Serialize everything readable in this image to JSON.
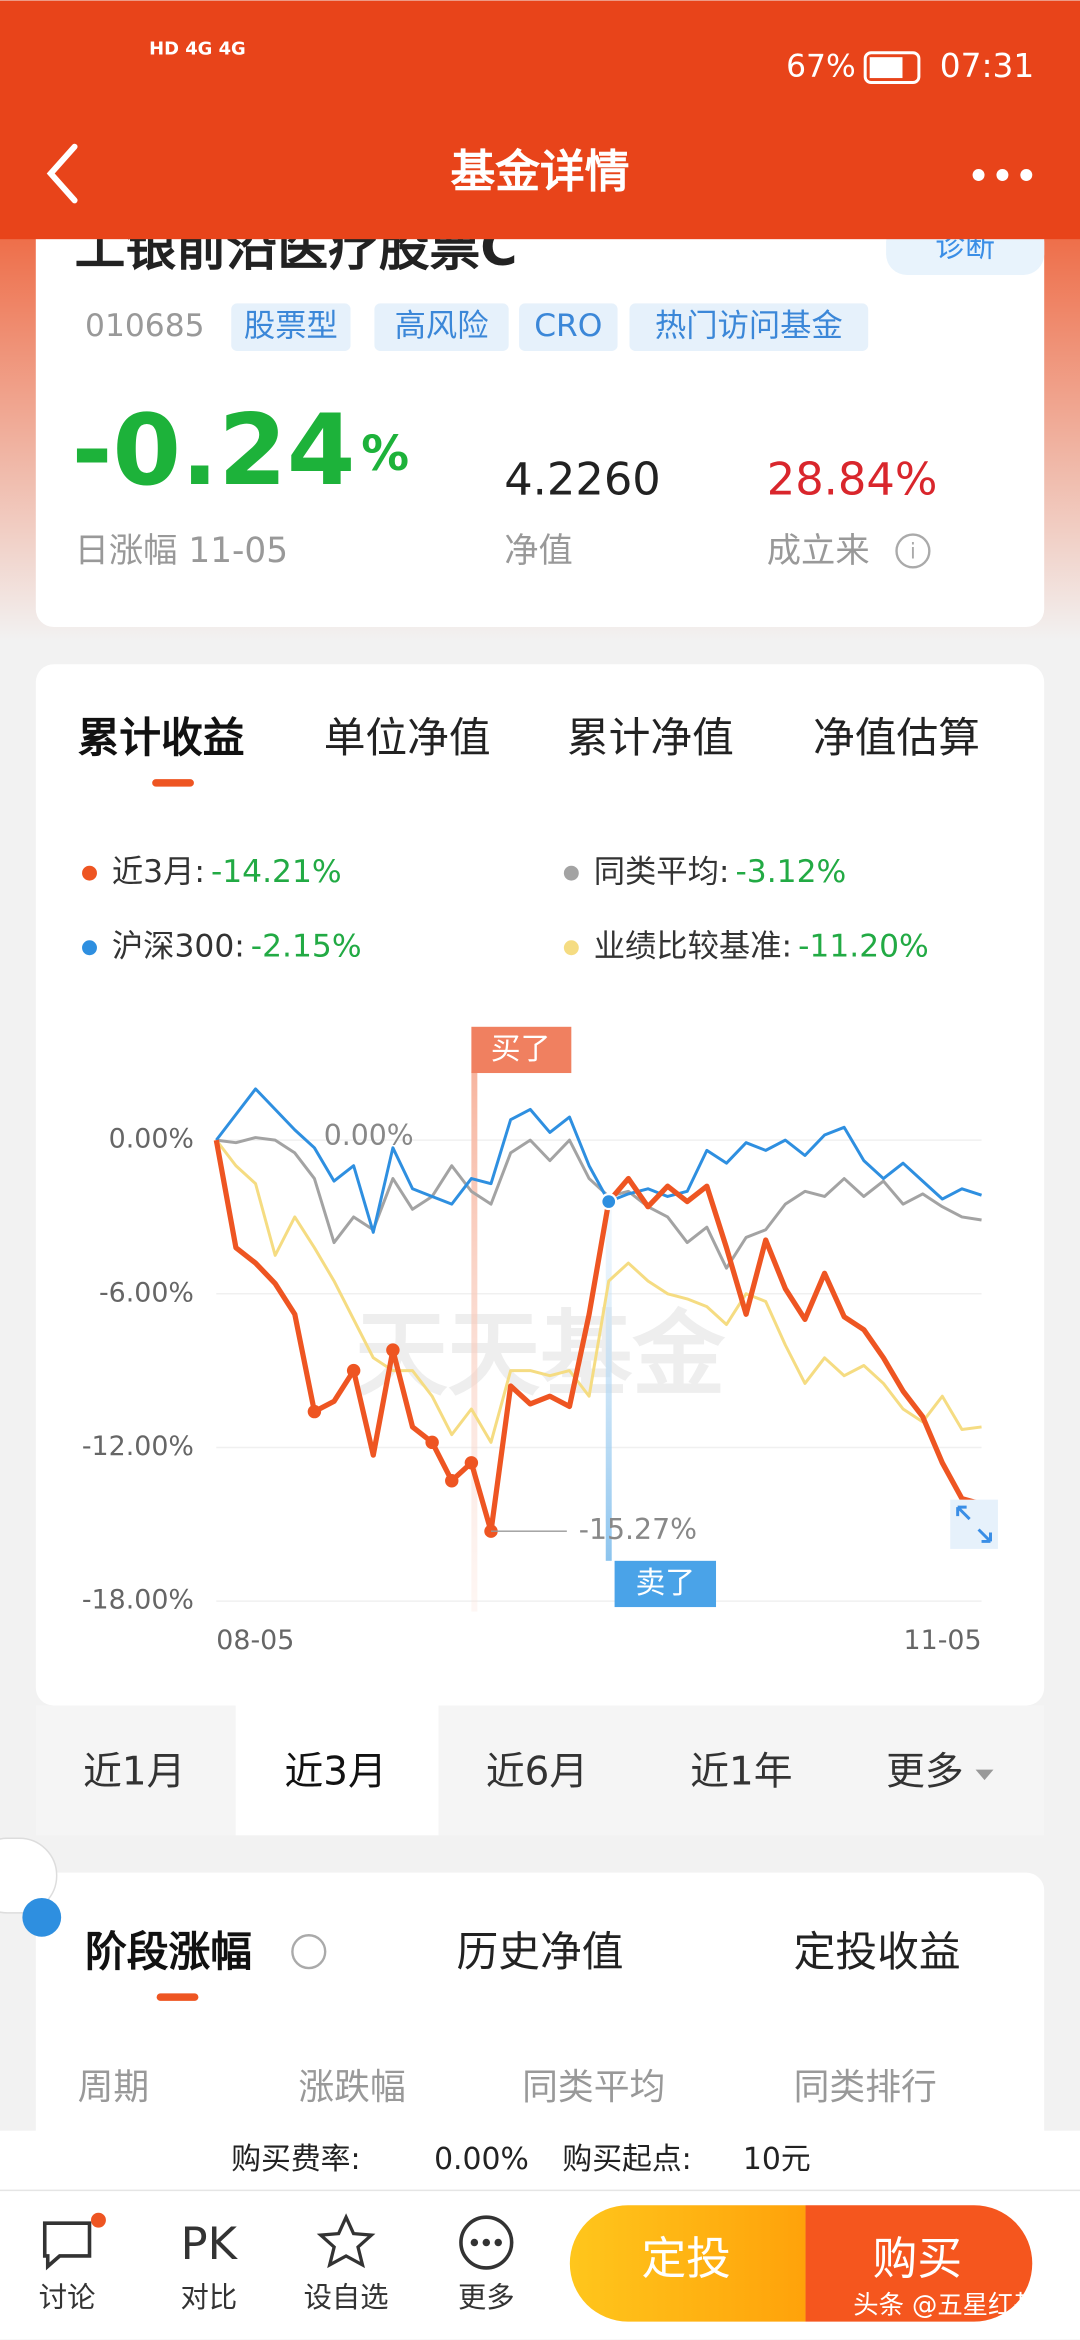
{
  "status_bar": {
    "battery": "67%",
    "time": "07:31"
  },
  "header": {
    "title": "基金详情"
  },
  "fund": {
    "name": "工银前沿医疗股票C",
    "diagnose": "诊断",
    "code": "010685",
    "tags": [
      "股票型",
      "高风险",
      "CRO",
      "热门访问基金"
    ],
    "daily_change": {
      "value": "-0.24",
      "unit": "%"
    },
    "daily_change_label": "日涨幅 11-05",
    "nav": "4.2260",
    "nav_label": "净值",
    "since_inception": "28.84%",
    "since_inception_label": "成立来"
  },
  "tabs": [
    "累计收益",
    "单位净值",
    "累计净值",
    "净值估算"
  ],
  "chart": {
    "type": "line",
    "buy_label": "买了",
    "sell_label": "卖了",
    "start_label": "0.00%",
    "min_label": "-15.27%",
    "watermark": "天天基金",
    "categories": [
      "08-05",
      null,
      null,
      null,
      null,
      null,
      null,
      null,
      null,
      null,
      null,
      null,
      null,
      null,
      null,
      null,
      null,
      null,
      null,
      null,
      null,
      null,
      null,
      null,
      null,
      null,
      null,
      null,
      null,
      null,
      null,
      null,
      null,
      null,
      null,
      null,
      null,
      null,
      null,
      "11-05"
    ],
    "ylim": [
      -18,
      4
    ],
    "yticks": [
      {
        "value": 0,
        "label": "0.00%"
      },
      {
        "value": -6,
        "label": "-6.00%"
      },
      {
        "value": -12,
        "label": "-12.00%"
      },
      {
        "value": -18,
        "label": "-18.00%"
      }
    ],
    "series": [
      {
        "name": "同类平均:",
        "legend_value": "-3.12%",
        "color": "#a3a3a3",
        "values": [
          0,
          -0.1,
          0.1,
          0,
          -0.5,
          -1.5,
          -4.0,
          -3.0,
          -3.5,
          -1.5,
          -2.7,
          -2.2,
          -1.0,
          -2.0,
          -2.5,
          -0.5,
          0,
          -0.8,
          0,
          -1.5,
          -2.2,
          -2.0,
          -2.6,
          -3.0,
          -4.0,
          -3.4,
          -5.0,
          -3.8,
          -3.5,
          -2.5,
          -2.0,
          -2.2,
          -1.5,
          -2.2,
          -1.6,
          -2.5,
          -2.1,
          -2.6,
          -3.0,
          -3.12
        ]
      },
      {
        "name": "业绩比较基准:",
        "legend_value": "-11.20%",
        "color": "#f5dc82",
        "values": [
          0,
          -1.0,
          -1.7,
          -4.5,
          -3.0,
          -4.2,
          -5.5,
          -7.0,
          -8.5,
          -9.0,
          -9.0,
          -10.0,
          -11.5,
          -10.5,
          -11.8,
          -9.0,
          -9.0,
          -9.2,
          -9.0,
          -10.0,
          -5.5,
          -4.8,
          -5.5,
          -6.0,
          -6.2,
          -6.5,
          -7.2,
          -6.0,
          -6.3,
          -8.0,
          -9.5,
          -8.5,
          -9.2,
          -8.8,
          -9.5,
          -10.5,
          -11.0,
          -10.0,
          -11.3,
          -11.2
        ]
      },
      {
        "name": "沪深300:",
        "legend_value": "-2.15%",
        "color": "#2e8fe0",
        "values": [
          0,
          1.0,
          2.0,
          1.2,
          0.4,
          -0.3,
          -1.6,
          -1.0,
          -3.6,
          -0.3,
          -1.9,
          -2.2,
          -2.5,
          -1.5,
          -1.7,
          0.8,
          1.2,
          0.3,
          0.9,
          -1.0,
          -2.4,
          -2.1,
          -1.9,
          -2.2,
          -2.0,
          -0.4,
          -0.9,
          -0.1,
          -0.4,
          0.0,
          -0.6,
          0.2,
          0.5,
          -0.8,
          -1.5,
          -0.9,
          -1.6,
          -2.3,
          -1.9,
          -2.15
        ]
      },
      {
        "name": "近3月:",
        "legend_value": "-14.21%",
        "color": "#ee5522",
        "values": [
          0,
          -4.2,
          -4.8,
          -5.6,
          -6.8,
          -10.6,
          -10.2,
          -9.0,
          -12.3,
          -8.2,
          -11.2,
          -11.8,
          -13.3,
          -12.6,
          -15.27,
          -9.6,
          -10.3,
          -10.0,
          -10.4,
          -6.8,
          -2.4,
          -1.5,
          -2.6,
          -1.8,
          -2.4,
          -1.8,
          -4.2,
          -6.8,
          -3.9,
          -5.8,
          -7.0,
          -5.2,
          -6.9,
          -7.4,
          -8.5,
          -9.8,
          -10.8,
          -12.6,
          -14.0,
          -14.21
        ]
      }
    ]
  },
  "periods": [
    "近1月",
    "近3月",
    "近6月",
    "近1年",
    "更多"
  ],
  "section_tabs": [
    "阶段涨幅",
    "历史净值",
    "定投收益"
  ],
  "table_headers": [
    "周期",
    "涨跌幅",
    "同类平均",
    "同类排行"
  ],
  "fee": {
    "rate_label": "购买费率:",
    "rate": "0.00%",
    "min_label": "购买起点:",
    "min": "10元"
  },
  "bottom_nav": {
    "discuss": "讨论",
    "pk": "PK",
    "compare": "对比",
    "watch": "设自选",
    "more": "更多",
    "invest": "定投",
    "buy": "购买",
    "watermark": "头条 @五星红基"
  }
}
